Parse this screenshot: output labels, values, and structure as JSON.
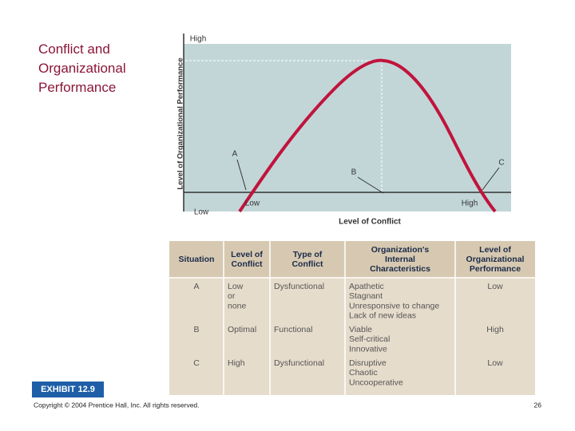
{
  "title": "Conflict and Organizational Performance",
  "figure": {
    "y_axis_label": "Level of Organizational Performance",
    "y_high": "High",
    "y_low": "Low",
    "x_axis_label": "Level of Conflict",
    "x_low": "Low",
    "x_high": "High",
    "point_a": "A",
    "point_b": "B",
    "point_c": "C"
  },
  "table": {
    "header": [
      [
        "Situation"
      ],
      [
        "Level of",
        "Conflict"
      ],
      [
        "Type of",
        "Conflict"
      ],
      [
        "Organization's",
        "Internal",
        "Characteristics"
      ],
      [
        "Level of",
        "Organizational",
        "Performance"
      ]
    ],
    "rows": [
      [
        [
          "A"
        ],
        [
          "Low",
          "or",
          "none"
        ],
        [
          "Dysfunctional"
        ],
        [
          "Apathetic",
          "Stagnant",
          "Unresponsive to change",
          "Lack of new ideas"
        ],
        [
          "Low"
        ]
      ],
      [
        [
          "B"
        ],
        [
          "Optimal"
        ],
        [
          "Functional"
        ],
        [
          "Viable",
          "Self-critical",
          "Innovative"
        ],
        [
          "High"
        ]
      ],
      [
        [
          "C"
        ],
        [
          "High"
        ],
        [
          "Dysfunctional"
        ],
        [
          "Disruptive",
          "Chaotic",
          "Uncooperative"
        ],
        [
          "Low"
        ]
      ]
    ]
  },
  "exhibit": "EXHIBIT 12.9",
  "footer": {
    "copyright": "Copyright © 2004 Prentice Hall, Inc. All rights reserved.",
    "page": "26"
  }
}
